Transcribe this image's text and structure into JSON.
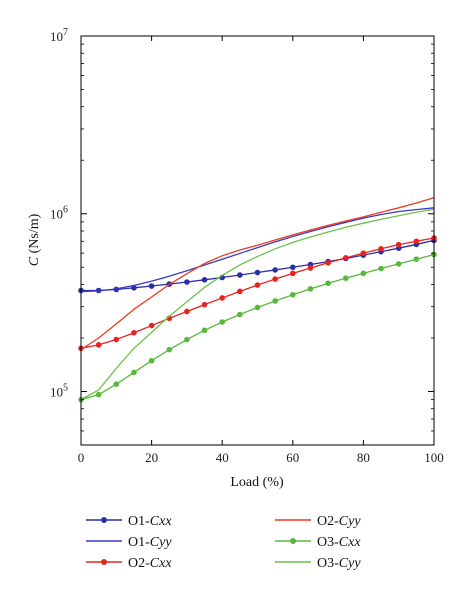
{
  "chart_data": {
    "type": "line",
    "xlabel": "Load (%)",
    "ylabel_prefix": "C",
    "ylabel_unit": " (Ns/m)",
    "xlim": [
      0,
      100
    ],
    "ylim": [
      50000,
      10000000
    ],
    "yscale": "log",
    "x_ticks": [
      0,
      20,
      40,
      60,
      80,
      100
    ],
    "y_ticks": [
      {
        "value": 100000,
        "base": "10",
        "exp": "5"
      },
      {
        "value": 1000000,
        "base": "10",
        "exp": "6"
      },
      {
        "value": 10000000,
        "base": "10",
        "exp": "7"
      }
    ],
    "grid": false,
    "legend_position": "bottom",
    "series": [
      {
        "name": "O1-Cxx",
        "name_prefix": "O1-",
        "name_var": "Cxx",
        "color": "#2b2fa6",
        "markers": true,
        "x": [
          0,
          5,
          10,
          15,
          20,
          25,
          30,
          35,
          40,
          45,
          50,
          55,
          60,
          65,
          70,
          75,
          80,
          85,
          90,
          95,
          100
        ],
        "y": [
          370000,
          370000,
          375000,
          383000,
          392000,
          402000,
          413000,
          425000,
          438000,
          452000,
          467000,
          483000,
          500000,
          518000,
          538000,
          560000,
          585000,
          612000,
          640000,
          672000,
          708000
        ]
      },
      {
        "name": "O1-Cyy",
        "name_prefix": "O1-",
        "name_var": "Cyy",
        "color": "#3a3ac8",
        "markers": false,
        "x": [
          0,
          5,
          10,
          15,
          20,
          25,
          30,
          35,
          40,
          45,
          50,
          55,
          60,
          65,
          70,
          75,
          80,
          85,
          90,
          95,
          100
        ],
        "y": [
          365000,
          368000,
          378000,
          395000,
          418000,
          445000,
          478000,
          515000,
          555000,
          598000,
          645000,
          695000,
          745000,
          795000,
          845000,
          895000,
          945000,
          990000,
          1030000,
          1055000,
          1080000
        ]
      },
      {
        "name": "O2-Cxx",
        "name_prefix": "O2-",
        "name_var": "Cxx",
        "color": "#e8221e",
        "markers": true,
        "x": [
          0,
          5,
          10,
          15,
          20,
          25,
          30,
          35,
          40,
          45,
          50,
          55,
          60,
          65,
          70,
          75,
          80,
          85,
          90,
          95,
          100
        ],
        "y": [
          175000,
          183000,
          196000,
          214000,
          235000,
          258000,
          282000,
          308000,
          336000,
          366000,
          397000,
          429000,
          462000,
          495000,
          530000,
          565000,
          600000,
          635000,
          670000,
          700000,
          730000
        ]
      },
      {
        "name": "O2-Cyy",
        "name_prefix": "O2-",
        "name_var": "Cyy",
        "color": "#ee3a22",
        "markers": false,
        "x": [
          0,
          5,
          10,
          15,
          20,
          25,
          30,
          35,
          40,
          45,
          50,
          55,
          60,
          65,
          70,
          75,
          80,
          85,
          90,
          95,
          100
        ],
        "y": [
          172000,
          200000,
          240000,
          290000,
          340000,
          400000,
          460000,
          525000,
          580000,
          625000,
          665000,
          712000,
          760000,
          810000,
          860000,
          910000,
          960000,
          1020000,
          1080000,
          1150000,
          1230000
        ]
      },
      {
        "name": "O3-Cxx",
        "name_prefix": "O3-",
        "name_var": "Cxx",
        "color": "#58b83c",
        "markers": true,
        "x": [
          0,
          5,
          10,
          15,
          20,
          25,
          30,
          35,
          40,
          45,
          50,
          55,
          60,
          65,
          70,
          75,
          80,
          85,
          90,
          95,
          100
        ],
        "y": [
          90000,
          96000,
          110000,
          128000,
          149000,
          172000,
          196000,
          221000,
          246000,
          271000,
          297000,
          323000,
          350000,
          378000,
          406000,
          434000,
          462000,
          492000,
          522000,
          555000,
          590000
        ]
      },
      {
        "name": "O3-Cyy",
        "name_prefix": "O3-",
        "name_var": "Cyy",
        "color": "#6cc24a",
        "markers": false,
        "x": [
          0,
          5,
          10,
          15,
          20,
          25,
          30,
          35,
          40,
          45,
          50,
          55,
          60,
          65,
          70,
          75,
          80,
          85,
          90,
          95,
          100
        ],
        "y": [
          90000,
          102000,
          135000,
          175000,
          215000,
          265000,
          320000,
          385000,
          450000,
          515000,
          575000,
          635000,
          690000,
          740000,
          790000,
          840000,
          885000,
          930000,
          975000,
          1020000,
          1060000
        ]
      }
    ]
  }
}
